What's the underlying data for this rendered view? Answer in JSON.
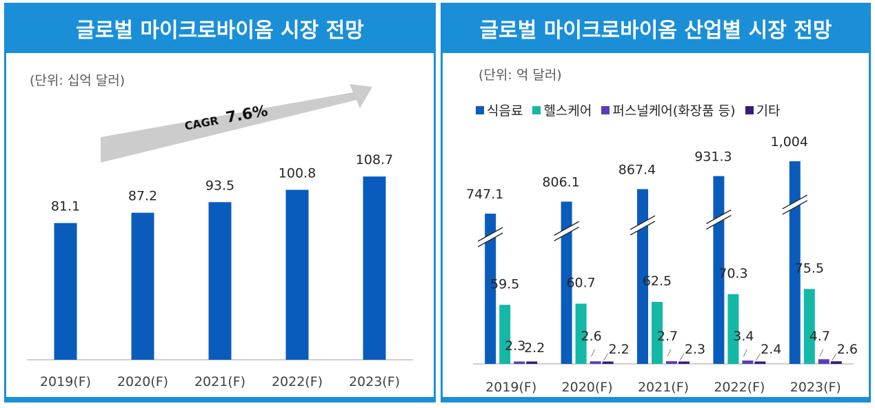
{
  "left_panel": {
    "title": "글로벌 마이크로바이옴 시장 전망",
    "unit": "(단위: 십억 달러)",
    "arrow_label_prefix": "CAGR",
    "arrow_label_value": "7.6%"
  },
  "right_panel": {
    "title": "글로벌 마이크로바이옴 산업별 시장 전망",
    "unit": "(단위: 억 달러)"
  },
  "chart_data": [
    {
      "type": "bar",
      "title": "글로벌 마이크로바이옴 시장 전망",
      "ylabel": "(단위: 십억 달러)",
      "categories": [
        "2019(F)",
        "2020(F)",
        "2021(F)",
        "2022(F)",
        "2023(F)"
      ],
      "values": [
        81.1,
        87.2,
        93.5,
        100.8,
        108.7
      ],
      "value_labels": [
        "81.1",
        "87.2",
        "93.5",
        "100.8",
        "108.7"
      ],
      "ylim": [
        0,
        130
      ],
      "color": "#0a5cbc",
      "annotation": "CAGR 7.6%"
    },
    {
      "type": "bar",
      "title": "글로벌 마이크로바이옴 산업별 시장 전망",
      "ylabel": "(단위: 억 달러)",
      "categories": [
        "2019(F)",
        "2020(F)",
        "2021(F)",
        "2022(F)",
        "2023(F)"
      ],
      "broken_axis": true,
      "series": [
        {
          "name": "식음료",
          "color": "#0a5cbc",
          "values": [
            747.1,
            806.1,
            867.4,
            931.3,
            1004
          ],
          "value_labels": [
            "747.1",
            "806.1",
            "867.4",
            "931.3",
            "1,004"
          ]
        },
        {
          "name": "헬스케어",
          "color": "#14b8a6",
          "values": [
            59.5,
            60.7,
            62.5,
            70.3,
            75.5
          ],
          "value_labels": [
            "59.5",
            "60.7",
            "62.5",
            "70.3",
            "75.5"
          ]
        },
        {
          "name": "퍼스널케어(화장품 등)",
          "color": "#5b3db8",
          "values": [
            2.3,
            2.6,
            2.7,
            3.4,
            4.7
          ],
          "value_labels": [
            "2.3",
            "2.6",
            "2.7",
            "3.4",
            "4.7"
          ]
        },
        {
          "name": "기타",
          "color": "#3a1a7a",
          "values": [
            2.2,
            2.2,
            2.3,
            2.4,
            2.6
          ],
          "value_labels": [
            "2.2",
            "2.2",
            "2.3",
            "2.4",
            "2.6"
          ]
        }
      ]
    }
  ]
}
